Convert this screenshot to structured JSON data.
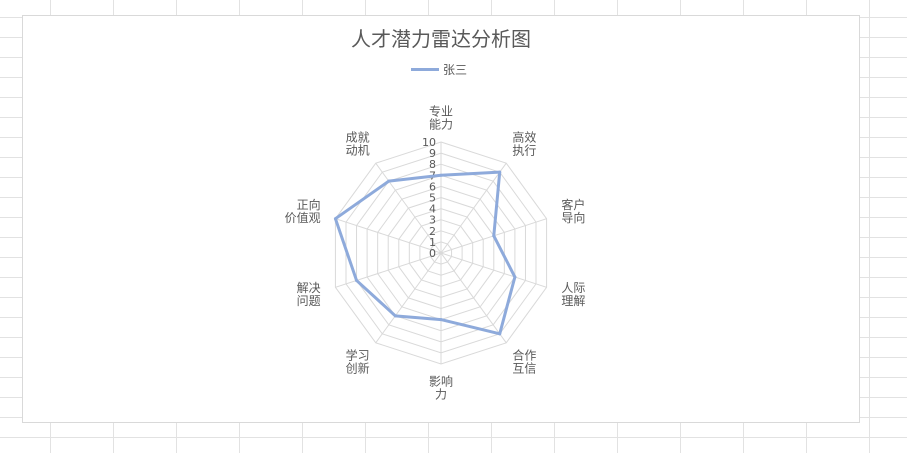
{
  "chart_data": {
    "type": "radar",
    "title": "人才潜力雷达分析图",
    "categories": [
      [
        "专业",
        "能力"
      ],
      [
        "高效",
        "执行"
      ],
      [
        "客户",
        "导向"
      ],
      [
        "人际",
        "理解"
      ],
      [
        "合作",
        "互信"
      ],
      [
        "影响",
        "力"
      ],
      [
        "学习",
        "创新"
      ],
      [
        "解决",
        "问题"
      ],
      [
        "正向",
        "价值观"
      ],
      [
        "成就",
        "动机"
      ]
    ],
    "series": [
      {
        "name": "张三",
        "values": [
          7,
          9,
          5,
          7,
          9,
          6,
          7,
          8,
          10,
          8
        ],
        "color": "#8eaadb"
      }
    ],
    "r_ticks": [
      "0",
      "1",
      "2",
      "3",
      "4",
      "5",
      "6",
      "7",
      "8",
      "9",
      "10"
    ],
    "r_range": [
      0,
      10
    ],
    "grid": true,
    "legend_position": "top"
  }
}
